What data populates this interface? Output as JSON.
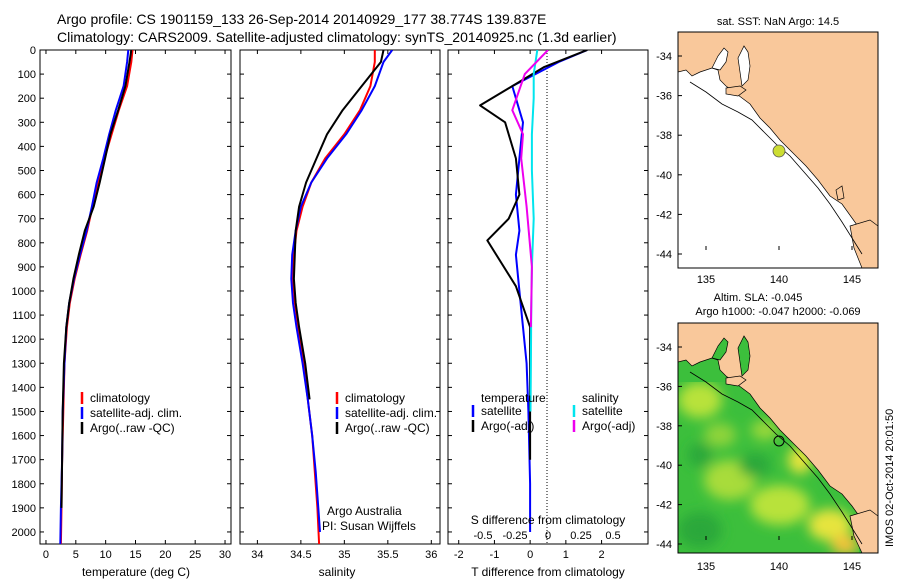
{
  "header": {
    "line1": "Argo profile: CS 1901159_133 26-Sep-2014 20140929_177 38.774S 139.837E",
    "line2": "Climatology: CARS2009. Satellite-adjusted climatology: synTS_20140925.nc (1.3d earlier)"
  },
  "colors": {
    "climatology": "#ff0000",
    "satellite": "#0000ff",
    "argo": "#000000",
    "salinity_satellite": "#00e5ee",
    "salinity_argo": "#ee00ee",
    "land": "#f9c89b",
    "sla_green": "#3cbf3c"
  },
  "chart_data": [
    {
      "type": "line",
      "xlabel": "temperature (deg C)",
      "ylim": [
        2050,
        0
      ],
      "xlim": [
        -1,
        31
      ],
      "xticks": [
        0,
        5,
        10,
        15,
        20,
        25,
        30
      ],
      "yticks": [
        0,
        100,
        200,
        300,
        400,
        500,
        600,
        700,
        800,
        900,
        1000,
        1100,
        1200,
        1300,
        1400,
        1500,
        1600,
        1700,
        1800,
        1900,
        2000
      ],
      "legend": [
        "climatology",
        "satellite-adj. clim.",
        "Argo(..raw -QC)"
      ],
      "series": [
        {
          "name": "climatology",
          "color": "red",
          "x": [
            14.5,
            14.3,
            13.6,
            12.2,
            11,
            9.8,
            8.7,
            7.8,
            6.9,
            5.8,
            4.8,
            4,
            3.5,
            3.1,
            2.9,
            2.7,
            2.6,
            2.5
          ],
          "y": [
            0,
            50,
            150,
            250,
            350,
            450,
            550,
            650,
            750,
            850,
            950,
            1050,
            1150,
            1300,
            1500,
            1700,
            1900,
            2050
          ]
        },
        {
          "name": "satellite-adj. clim.",
          "color": "blue",
          "x": [
            13.8,
            13.6,
            13,
            11.7,
            10.6,
            9.6,
            8.5,
            7.7,
            6.8,
            5.7,
            4.7,
            3.9,
            3.4,
            3.1,
            2.8,
            2.7,
            2.5,
            2.4
          ],
          "y": [
            0,
            50,
            150,
            250,
            350,
            450,
            550,
            650,
            750,
            850,
            950,
            1050,
            1150,
            1300,
            1500,
            1700,
            1900,
            2050
          ]
        },
        {
          "name": "Argo(..raw -QC)",
          "color": "black",
          "x": [
            14.3,
            14,
            13.3,
            12.1,
            10.8,
            9.9,
            9,
            8,
            6.5,
            5.5,
            4.6,
            3.9,
            3.4,
            3,
            2.8,
            2.7,
            2.6
          ],
          "y": [
            0,
            50,
            150,
            250,
            350,
            450,
            550,
            650,
            750,
            850,
            950,
            1050,
            1150,
            1300,
            1500,
            1700,
            1900
          ]
        }
      ]
    },
    {
      "type": "line",
      "xlabel": "salinity",
      "ylim": [
        2050,
        0
      ],
      "xlim": [
        33.8,
        36.1
      ],
      "xticks": [
        34,
        34.5,
        35,
        35.5,
        36
      ],
      "legend": [
        "climatology",
        "satellite-adj. clim.",
        "Argo(..raw -QC)"
      ],
      "annotation": [
        "Argo Australia",
        "PI: Susan Wijffels"
      ],
      "series": [
        {
          "name": "climatology",
          "color": "red",
          "x": [
            35.35,
            35.35,
            35.3,
            35.18,
            35.0,
            34.78,
            34.62,
            34.52,
            34.45,
            34.42,
            34.41,
            34.43,
            34.47,
            34.53,
            34.58,
            34.63,
            34.66,
            34.69,
            34.71
          ],
          "y": [
            0,
            50,
            150,
            250,
            350,
            450,
            550,
            650,
            750,
            850,
            950,
            1050,
            1150,
            1300,
            1450,
            1600,
            1750,
            1900,
            2050
          ]
        },
        {
          "name": "satellite-adj. clim.",
          "color": "blue",
          "x": [
            35.55,
            35.45,
            35.35,
            35.2,
            35.02,
            34.8,
            34.62,
            34.5,
            34.44,
            34.4,
            34.39,
            34.41,
            34.45,
            34.52,
            34.58,
            34.63,
            34.67,
            34.7,
            34.72
          ],
          "y": [
            0,
            50,
            150,
            250,
            350,
            450,
            550,
            650,
            750,
            850,
            950,
            1050,
            1150,
            1300,
            1450,
            1600,
            1750,
            1900,
            2000
          ]
        },
        {
          "name": "Argo(..raw -QC)",
          "color": "black",
          "x": [
            35.45,
            35.42,
            35.2,
            34.98,
            34.8,
            34.68,
            34.56,
            34.48,
            34.44,
            34.43,
            34.42,
            34.44,
            34.48,
            34.55,
            34.6
          ],
          "y": [
            0,
            50,
            150,
            250,
            350,
            450,
            550,
            650,
            750,
            850,
            950,
            1050,
            1150,
            1300,
            1450
          ]
        }
      ]
    },
    {
      "type": "line",
      "xlabel": "T difference from climatology",
      "xlim": [
        -2.3,
        3.3
      ],
      "xticks": [
        -2,
        -1,
        0,
        1,
        2
      ],
      "top_xlabel": "S difference from climatology",
      "top_xticks": [
        "-0.5",
        "-0.25",
        "0",
        "0.25",
        "0.5"
      ],
      "legend_temperature_title": "temperature",
      "legend_temperature": [
        "satellite",
        "Argo(-adj)"
      ],
      "legend_salinity_title": "salinity",
      "legend_salinity": [
        "satellite",
        "Argo(-adj)"
      ],
      "ylim": [
        2050,
        0
      ],
      "series": [
        {
          "name": "temperature satellite",
          "color": "blue",
          "x": [
            1.6,
            0.8,
            -0.5,
            -0.2,
            -0.3,
            -0.4,
            -0.3,
            -0.4,
            -0.3,
            -0.2,
            -0.1,
            -0.05,
            0,
            0
          ],
          "y": [
            0,
            50,
            150,
            300,
            450,
            600,
            750,
            850,
            1000,
            1150,
            1300,
            1500,
            1800,
            2000
          ]
        },
        {
          "name": "temperature Argo(-adj)",
          "color": "black",
          "x": [
            1.6,
            0.4,
            -1.4,
            -0.7,
            -0.4,
            -0.3,
            -0.6,
            -1.2,
            -0.4,
            0,
            0,
            0
          ],
          "y": [
            0,
            70,
            230,
            300,
            450,
            600,
            700,
            790,
            980,
            1150,
            1400,
            1700
          ]
        },
        {
          "name": "salinity satellite",
          "color": "cyan",
          "x": [
            0.2,
            0.1,
            0.1,
            0.05,
            0.05,
            0.1,
            0.05,
            0.03,
            0.02,
            0.01
          ],
          "y": [
            0,
            100,
            200,
            350,
            500,
            700,
            900,
            1100,
            1300,
            1500
          ]
        },
        {
          "name": "salinity Argo(-adj)",
          "color": "magenta",
          "x": [
            0.5,
            -0.15,
            -0.5,
            -0.2,
            -0.25,
            -0.1,
            0.05,
            0.02
          ],
          "y": [
            0,
            100,
            250,
            350,
            450,
            650,
            900,
            1150
          ]
        }
      ]
    }
  ],
  "map_sst": {
    "title": "sat. SST: NaN Argo: 14.5",
    "xticks": [
      "135",
      "140",
      "145"
    ],
    "yticks": [
      "-34",
      "-36",
      "-38",
      "-40",
      "-42",
      "-44"
    ]
  },
  "map_sla": {
    "title1": "Altim. SLA: -0.045",
    "title2": "Argo h1000: -0.047 h2000: -0.069",
    "xticks": [
      "135",
      "140",
      "145"
    ],
    "yticks": [
      "-34",
      "-36",
      "-38",
      "-40",
      "-42",
      "-44"
    ],
    "side_label": "IMOS 02-Oct-2014 20:01:50"
  }
}
